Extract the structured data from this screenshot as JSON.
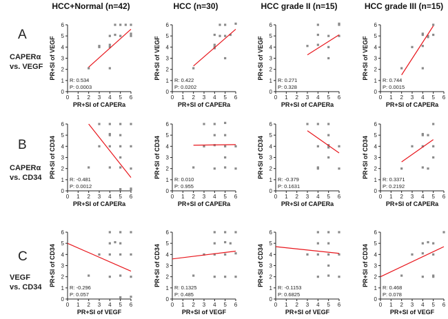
{
  "column_titles": [
    "HCC+Normal (n=42)",
    "HCC (n=30)",
    "HCC grade II (n=15)",
    "HCC grade III (n=15)"
  ],
  "rows": [
    {
      "letter": "A",
      "label_line1": "CAPERα",
      "label_line2": "vs. VEGF"
    },
    {
      "letter": "B",
      "label_line1": "CAPERα",
      "label_line2": "vs. CD34"
    },
    {
      "letter": "C",
      "label_line1": "VEGF",
      "label_line2": "vs. CD34"
    }
  ],
  "chart_data": [
    {
      "type": "scatter",
      "row": "A",
      "column": "HCC+Normal (n=42)",
      "xlabel": "PR+SI of CAPERa",
      "ylabel": "PR+SI of VEGF",
      "xlim": [
        0,
        6
      ],
      "ylim": [
        0,
        6
      ],
      "xticks": [
        "0",
        "1",
        "2",
        "3",
        "4",
        "5",
        "6"
      ],
      "yticks": [
        "0",
        "1",
        "2",
        "3",
        "4",
        "5",
        "6"
      ],
      "r_text": "R: 0.534",
      "p_text": "P: 0.0003",
      "fit": {
        "x": [
          2,
          6
        ],
        "y": [
          2.2,
          5.6
        ]
      },
      "points": [
        [
          2,
          2.1
        ],
        [
          3,
          4.1
        ],
        [
          4,
          4.2
        ],
        [
          4,
          4.0
        ],
        [
          4,
          5.0
        ],
        [
          4.5,
          5.1
        ],
        [
          4.5,
          6.0
        ],
        [
          5,
          5.0
        ],
        [
          5,
          6.0
        ],
        [
          5.5,
          6.0
        ],
        [
          6,
          6.0
        ],
        [
          6,
          5.2
        ],
        [
          6,
          5.0
        ],
        [
          3,
          4.0
        ],
        [
          4,
          2.1
        ]
      ]
    },
    {
      "type": "scatter",
      "row": "A",
      "column": "HCC (n=30)",
      "xlabel": "PR+SI of CAPERa",
      "ylabel": "PR+SI of VEGF",
      "xlim": [
        0,
        6
      ],
      "ylim": [
        0,
        6
      ],
      "xticks": [
        "0",
        "1",
        "2",
        "3",
        "4",
        "5",
        "6"
      ],
      "yticks": [
        "0",
        "1",
        "2",
        "3",
        "4",
        "5",
        "6"
      ],
      "r_text": "R: 0.422",
      "p_text": "P: 0.0202",
      "fit": {
        "x": [
          2,
          6
        ],
        "y": [
          2.3,
          5.6
        ]
      },
      "points": [
        [
          2,
          2.1
        ],
        [
          4,
          4.2
        ],
        [
          4,
          4.0
        ],
        [
          4,
          5.1
        ],
        [
          4.5,
          5.0
        ],
        [
          4.5,
          6.0
        ],
        [
          5,
          5.0
        ],
        [
          5,
          6.0
        ],
        [
          5.5,
          5.1
        ],
        [
          6,
          6.1
        ],
        [
          5,
          3.0
        ],
        [
          4,
          3.9
        ]
      ]
    },
    {
      "type": "scatter",
      "row": "A",
      "column": "HCC grade II (n=15)",
      "xlabel": "PR+SI of CAPERa",
      "ylabel": "PR+SI of VEGF",
      "xlim": [
        0,
        6
      ],
      "ylim": [
        0,
        6
      ],
      "xticks": [
        "0",
        "1",
        "2",
        "3",
        "4",
        "5",
        "6"
      ],
      "yticks": [
        "0",
        "1",
        "2",
        "3",
        "4",
        "5",
        "6"
      ],
      "r_text": "R: 0.271",
      "p_text": "P: 0.328",
      "fit": {
        "x": [
          3,
          6
        ],
        "y": [
          3.3,
          5.1
        ]
      },
      "points": [
        [
          3,
          4.1
        ],
        [
          4,
          4.2
        ],
        [
          4,
          5.1
        ],
        [
          4,
          6.0
        ],
        [
          5,
          5.0
        ],
        [
          5,
          4.0
        ],
        [
          5,
          3.0
        ],
        [
          6,
          6.0
        ],
        [
          6,
          5.0
        ],
        [
          6,
          6.1
        ]
      ]
    },
    {
      "type": "scatter",
      "row": "A",
      "column": "HCC grade III (n=15)",
      "xlabel": "PR+SI of CAPERa",
      "ylabel": "PR+SI of VEGF",
      "xlim": [
        0,
        6
      ],
      "ylim": [
        0,
        6
      ],
      "xticks": [
        "0",
        "1",
        "2",
        "3",
        "4",
        "5",
        "6"
      ],
      "yticks": [
        "0",
        "1",
        "2",
        "3",
        "4",
        "5",
        "6"
      ],
      "r_text": "R: 0.744",
      "p_text": "P: 0.0015",
      "fit": {
        "x": [
          2,
          5
        ],
        "y": [
          1.5,
          5.9
        ]
      },
      "points": [
        [
          2,
          2.1
        ],
        [
          3,
          4.0
        ],
        [
          4,
          5.1
        ],
        [
          4,
          5.2
        ],
        [
          4,
          4.1
        ],
        [
          4.5,
          5.0
        ],
        [
          4.5,
          4.9
        ],
        [
          5,
          5.1
        ],
        [
          5,
          6.0
        ],
        [
          4,
          2.1
        ]
      ]
    },
    {
      "type": "scatter",
      "row": "B",
      "column": "HCC+Normal (n=42)",
      "xlabel": "PR+SI of CAPERa",
      "ylabel": "PR+SI of CD34",
      "xlim": [
        0,
        6
      ],
      "ylim": [
        0,
        6
      ],
      "xticks": [
        "0",
        "1",
        "2",
        "3",
        "4",
        "5",
        "6"
      ],
      "yticks": [
        "0",
        "1",
        "2",
        "3",
        "4",
        "5",
        "6"
      ],
      "r_text": "R: -0.481",
      "p_text": "P: 0.0012",
      "fit": {
        "x": [
          2,
          6
        ],
        "y": [
          6.0,
          1.2
        ]
      },
      "points": [
        [
          2,
          2.1
        ],
        [
          3,
          6.0
        ],
        [
          3,
          4.0
        ],
        [
          4,
          6.0
        ],
        [
          4,
          5.1
        ],
        [
          4,
          5.0
        ],
        [
          4,
          4.0
        ],
        [
          4,
          2.1
        ],
        [
          5,
          6.0
        ],
        [
          5,
          5.0
        ],
        [
          5,
          4.0
        ],
        [
          5,
          3.0
        ],
        [
          5,
          2.1
        ],
        [
          5,
          0.15
        ],
        [
          6,
          6.0
        ],
        [
          6,
          4.0
        ],
        [
          6,
          2.0
        ],
        [
          6,
          0.1
        ],
        [
          6,
          0.2
        ]
      ]
    },
    {
      "type": "scatter",
      "row": "B",
      "column": "HCC (n=30)",
      "xlabel": "PR+SI of CAPERa",
      "ylabel": "PR+SI of CD34",
      "xlim": [
        0,
        6
      ],
      "ylim": [
        0,
        6
      ],
      "xticks": [
        "0",
        "1",
        "2",
        "3",
        "4",
        "5",
        "6"
      ],
      "yticks": [
        "0",
        "1",
        "2",
        "3",
        "4",
        "5",
        "6"
      ],
      "r_text": "R: 0.010",
      "p_text": "P: 0.955",
      "fit": {
        "x": [
          2,
          6
        ],
        "y": [
          4.1,
          4.15
        ]
      },
      "points": [
        [
          2,
          2.1
        ],
        [
          3,
          6.0
        ],
        [
          3,
          4.0
        ],
        [
          4,
          6.0
        ],
        [
          4,
          5.0
        ],
        [
          4,
          4.1
        ],
        [
          4,
          2.0
        ],
        [
          5,
          6.1
        ],
        [
          5,
          5.0
        ],
        [
          5,
          4.0
        ],
        [
          5,
          3.0
        ],
        [
          5,
          2.1
        ],
        [
          6,
          4.0
        ],
        [
          6,
          2.0
        ]
      ]
    },
    {
      "type": "scatter",
      "row": "B",
      "column": "HCC grade II (n=15)",
      "xlabel": "PR+SI of CAPERa",
      "ylabel": "PR+SI of CD34",
      "xlim": [
        0,
        6
      ],
      "ylim": [
        0,
        6
      ],
      "xticks": [
        "0",
        "1",
        "2",
        "3",
        "4",
        "5",
        "6"
      ],
      "yticks": [
        "0",
        "1",
        "2",
        "3",
        "4",
        "5",
        "6"
      ],
      "r_text": "R: -0.379",
      "p_text": "P: 0.1631",
      "fit": {
        "x": [
          3,
          6
        ],
        "y": [
          5.4,
          3.4
        ]
      },
      "points": [
        [
          3,
          6.0
        ],
        [
          4,
          6.0
        ],
        [
          4,
          4.0
        ],
        [
          4,
          2.1
        ],
        [
          4,
          2.0
        ],
        [
          5,
          6.0
        ],
        [
          5,
          5.0
        ],
        [
          5,
          4.1
        ],
        [
          5,
          3.9
        ],
        [
          5,
          3.0
        ],
        [
          6,
          4.0
        ],
        [
          6,
          2.0
        ]
      ]
    },
    {
      "type": "scatter",
      "row": "B",
      "column": "HCC grade III (n=15)",
      "xlabel": "PR+SI of CAPERa",
      "ylabel": "PR+SI of CD34",
      "xlim": [
        0,
        6
      ],
      "ylim": [
        0,
        6
      ],
      "xticks": [
        "0",
        "1",
        "2",
        "3",
        "4",
        "5",
        "6"
      ],
      "yticks": [
        "0",
        "1",
        "2",
        "3",
        "4",
        "5",
        "6"
      ],
      "r_text": "R: 0.3371",
      "p_text": "P: 0.2192",
      "fit": {
        "x": [
          2,
          5
        ],
        "y": [
          2.6,
          4.6
        ]
      },
      "points": [
        [
          2,
          2.0
        ],
        [
          3,
          4.0
        ],
        [
          4,
          5.1
        ],
        [
          4,
          5.0
        ],
        [
          4,
          4.0
        ],
        [
          4,
          2.1
        ],
        [
          4.5,
          5.0
        ],
        [
          5,
          6.0
        ],
        [
          5,
          4.0
        ],
        [
          5,
          3.0
        ],
        [
          4.5,
          2.0
        ]
      ]
    },
    {
      "type": "scatter",
      "row": "C",
      "column": "HCC+Normal (n=42)",
      "xlabel": "PR+SI of VEGF",
      "ylabel": "PR+SI of CD34",
      "xlim": [
        0,
        6
      ],
      "ylim": [
        0,
        6
      ],
      "xticks": [
        "0",
        "1",
        "2",
        "3",
        "4",
        "5",
        "6"
      ],
      "yticks": [
        "0",
        "1",
        "2",
        "3",
        "4",
        "5",
        "6"
      ],
      "r_text": "R: -0.296",
      "p_text": "P: 0.057",
      "fit": {
        "x": [
          0,
          6
        ],
        "y": [
          5.0,
          2.5
        ]
      },
      "points": [
        [
          2,
          2.1
        ],
        [
          3,
          4.0
        ],
        [
          4,
          6.0
        ],
        [
          4,
          5.0
        ],
        [
          4,
          4.0
        ],
        [
          4,
          2.0
        ],
        [
          4.5,
          5.1
        ],
        [
          5,
          6.0
        ],
        [
          5,
          5.0
        ],
        [
          5,
          4.0
        ],
        [
          5,
          2.1
        ],
        [
          5,
          0.15
        ],
        [
          6,
          6.0
        ],
        [
          6,
          4.0
        ],
        [
          6,
          2.0
        ],
        [
          6,
          0.2
        ]
      ]
    },
    {
      "type": "scatter",
      "row": "C",
      "column": "HCC (n=30)",
      "xlabel": "PR+SI of VEGF",
      "ylabel": "PR+SI of CD34",
      "xlim": [
        0,
        6
      ],
      "ylim": [
        0,
        6
      ],
      "xticks": [
        "0",
        "1",
        "2",
        "3",
        "4",
        "5",
        "6"
      ],
      "yticks": [
        "0",
        "1",
        "2",
        "3",
        "4",
        "5",
        "6"
      ],
      "r_text": "R: 0.1325",
      "p_text": "P: 0.485",
      "fit": {
        "x": [
          0,
          6
        ],
        "y": [
          3.6,
          4.3
        ]
      },
      "points": [
        [
          2,
          2.1
        ],
        [
          3,
          4.0
        ],
        [
          4,
          6.0
        ],
        [
          4,
          5.0
        ],
        [
          4,
          4.0
        ],
        [
          4,
          2.0
        ],
        [
          5,
          6.0
        ],
        [
          5,
          5.1
        ],
        [
          5,
          4.0
        ],
        [
          5,
          2.0
        ],
        [
          5.5,
          5.0
        ],
        [
          6,
          6.0
        ],
        [
          6,
          4.1
        ],
        [
          6,
          2.0
        ]
      ]
    },
    {
      "type": "scatter",
      "row": "C",
      "column": "HCC grade II (n=15)",
      "xlabel": "PR+SI of VEGF",
      "ylabel": "PR+SI of CD34",
      "xlim": [
        0,
        6
      ],
      "ylim": [
        0,
        6
      ],
      "xticks": [
        "0",
        "1",
        "2",
        "3",
        "4",
        "5",
        "6"
      ],
      "yticks": [
        "0",
        "1",
        "2",
        "3",
        "4",
        "5",
        "6"
      ],
      "r_text": "R: -0.1153",
      "p_text": "P: 0.6825",
      "fit": {
        "x": [
          0,
          6
        ],
        "y": [
          4.7,
          4.1
        ]
      },
      "points": [
        [
          3,
          4.0
        ],
        [
          4,
          6.0
        ],
        [
          4,
          5.0
        ],
        [
          4,
          4.0
        ],
        [
          4,
          2.0
        ],
        [
          5,
          6.0
        ],
        [
          5,
          5.0
        ],
        [
          5,
          4.0
        ],
        [
          5,
          3.0
        ],
        [
          5,
          2.1
        ],
        [
          6,
          6.0
        ],
        [
          6,
          4.0
        ],
        [
          6,
          2.0
        ]
      ]
    },
    {
      "type": "scatter",
      "row": "C",
      "column": "HCC grade III (n=15)",
      "xlabel": "PR+SI of VEGF",
      "ylabel": "PR+SI of CD34",
      "xlim": [
        0,
        6
      ],
      "ylim": [
        0,
        6
      ],
      "xticks": [
        "0",
        "1",
        "2",
        "3",
        "4",
        "5",
        "6"
      ],
      "yticks": [
        "0",
        "1",
        "2",
        "3",
        "4",
        "5",
        "6"
      ],
      "r_text": "R: 0.468",
      "p_text": "P: 0.078",
      "fit": {
        "x": [
          0,
          6
        ],
        "y": [
          2.0,
          4.7
        ]
      },
      "points": [
        [
          2,
          2.1
        ],
        [
          3,
          4.0
        ],
        [
          4,
          5.0
        ],
        [
          4,
          4.1
        ],
        [
          4,
          2.0
        ],
        [
          4.5,
          5.1
        ],
        [
          5,
          5.0
        ],
        [
          5,
          4.0
        ],
        [
          5,
          2.1
        ],
        [
          5,
          2.0
        ],
        [
          6,
          6.0
        ]
      ]
    }
  ]
}
